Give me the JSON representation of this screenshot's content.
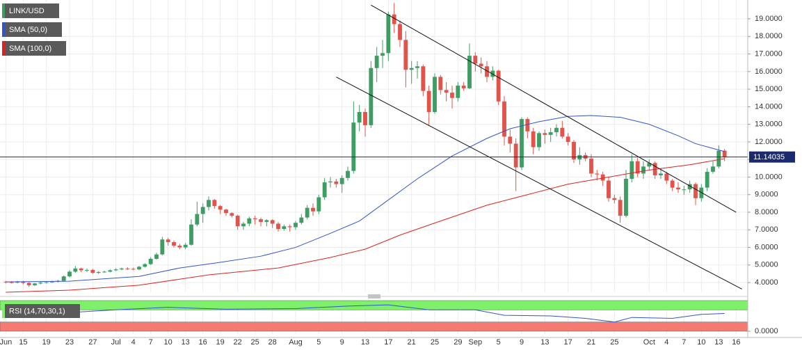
{
  "chart_data": [
    {
      "type": "candlestick",
      "name": "LINK/USD",
      "x": [
        "06-12",
        "06-13",
        "06-14",
        "06-15",
        "06-16",
        "06-17",
        "06-18",
        "06-19",
        "06-20",
        "06-21",
        "06-22",
        "06-23",
        "06-24",
        "06-25",
        "06-26",
        "06-27",
        "06-28",
        "06-29",
        "06-30",
        "07-01",
        "07-02",
        "07-03",
        "07-04",
        "07-05",
        "07-06",
        "07-07",
        "07-08",
        "07-09",
        "07-10",
        "07-11",
        "07-12",
        "07-13",
        "07-14",
        "07-15",
        "07-16",
        "07-17",
        "07-18",
        "07-19",
        "07-20",
        "07-21",
        "07-22",
        "07-23",
        "07-24",
        "07-25",
        "07-26",
        "07-27",
        "07-28",
        "07-29",
        "07-30",
        "07-31",
        "08-01",
        "08-02",
        "08-03",
        "08-04",
        "08-05",
        "08-06",
        "08-07",
        "08-08",
        "08-09",
        "08-10",
        "08-11",
        "08-12",
        "08-13",
        "08-14",
        "08-15",
        "08-16",
        "08-17",
        "08-18",
        "08-19",
        "08-20",
        "08-21",
        "08-22",
        "08-23",
        "08-24",
        "08-25",
        "08-26",
        "08-27",
        "08-28",
        "08-29",
        "08-30",
        "08-31",
        "09-01",
        "09-02",
        "09-03",
        "09-04",
        "09-05",
        "09-06",
        "09-07",
        "09-08",
        "09-09",
        "09-10",
        "09-11",
        "09-12",
        "09-13",
        "09-14",
        "09-15",
        "09-16",
        "09-17",
        "09-18",
        "09-19",
        "09-20",
        "09-21",
        "09-22",
        "09-23",
        "09-24",
        "09-25",
        "09-26",
        "09-27",
        "09-28",
        "09-29",
        "09-30",
        "10-01",
        "10-02",
        "10-03",
        "10-04",
        "10-05",
        "10-06",
        "10-07",
        "10-08",
        "10-09",
        "10-10",
        "10-11",
        "10-12",
        "10-13",
        "10-14"
      ],
      "open": [
        4.05,
        4.02,
        4.0,
        4.05,
        3.98,
        3.85,
        3.95,
        4.0,
        4.02,
        4.05,
        4.1,
        4.35,
        4.62,
        4.8,
        4.7,
        4.72,
        4.55,
        4.6,
        4.62,
        4.7,
        4.75,
        4.8,
        4.78,
        4.75,
        4.9,
        5.05,
        5.35,
        5.6,
        6.45,
        6.3,
        6.1,
        6.0,
        6.15,
        7.3,
        7.9,
        8.3,
        8.7,
        8.35,
        8.15,
        7.95,
        7.8,
        7.2,
        7.35,
        7.65,
        7.6,
        7.45,
        7.55,
        7.35,
        7.05,
        7.2,
        7.15,
        7.4,
        7.7,
        8.25,
        8.05,
        8.85,
        9.7,
        9.75,
        9.6,
        9.95,
        10.35,
        13.1,
        13.7,
        12.95,
        16.2,
        16.9,
        17.05,
        19.25,
        18.7,
        17.8,
        16.1,
        16.2,
        16.3,
        14.9,
        13.7,
        15.7,
        14.95,
        14.8,
        14.5,
        15.2,
        15.05,
        16.9,
        16.45,
        16.3,
        15.7,
        16.05,
        14.3,
        12.3,
        11.9,
        10.55,
        13.3,
        12.6,
        11.7,
        12.5,
        12.4,
        12.55,
        12.8,
        12.3,
        12.0,
        11.0,
        11.25,
        11.05,
        10.2,
        10.15,
        9.8,
        8.8,
        8.7,
        7.8,
        9.9,
        10.9,
        10.2,
        10.6,
        10.8,
        10.1,
        10.2,
        9.8,
        9.4,
        9.3,
        9.3,
        9.6,
        8.8,
        9.4,
        10.3,
        10.6,
        11.5
      ],
      "high": [
        4.1,
        4.08,
        4.1,
        4.1,
        4.02,
        3.98,
        4.05,
        4.08,
        4.1,
        4.15,
        4.4,
        4.7,
        4.95,
        4.85,
        4.8,
        4.78,
        4.65,
        4.68,
        4.75,
        4.82,
        4.85,
        4.88,
        4.85,
        4.95,
        5.1,
        5.45,
        5.7,
        6.6,
        6.55,
        6.4,
        6.2,
        6.25,
        7.6,
        8.6,
        8.5,
        8.9,
        8.75,
        8.4,
        8.2,
        8.0,
        7.85,
        7.45,
        7.75,
        7.8,
        7.7,
        7.6,
        7.6,
        7.45,
        7.3,
        7.3,
        7.5,
        7.9,
        8.4,
        8.5,
        9.0,
        9.95,
        10.0,
        9.9,
        10.1,
        10.6,
        14.3,
        14.1,
        13.9,
        16.6,
        17.4,
        17.8,
        19.4,
        19.9,
        18.9,
        18.3,
        16.6,
        16.6,
        16.4,
        15.2,
        15.9,
        15.8,
        15.4,
        15.2,
        15.4,
        15.4,
        17.6,
        17.1,
        16.8,
        16.6,
        16.3,
        16.1,
        14.6,
        12.7,
        12.2,
        13.4,
        13.4,
        12.8,
        12.6,
        12.7,
        12.8,
        13.0,
        13.2,
        12.5,
        12.1,
        11.7,
        11.4,
        11.3,
        10.4,
        10.3,
        10.0,
        9.0,
        8.9,
        10.4,
        11.3,
        11.1,
        10.9,
        11.0,
        10.9,
        10.5,
        10.3,
        9.9,
        9.7,
        9.5,
        9.8,
        9.7,
        9.6,
        10.5,
        10.9,
        11.8,
        11.6
      ],
      "low": [
        3.95,
        3.95,
        3.95,
        3.9,
        3.75,
        3.8,
        3.9,
        3.95,
        3.98,
        4.0,
        4.05,
        4.3,
        4.55,
        4.6,
        4.6,
        4.5,
        4.5,
        4.55,
        4.58,
        4.65,
        4.7,
        4.72,
        4.7,
        4.7,
        4.85,
        5.0,
        5.3,
        5.55,
        6.1,
        6.0,
        5.9,
        5.9,
        6.1,
        7.2,
        7.4,
        8.1,
        8.2,
        7.9,
        7.8,
        7.7,
        7.0,
        7.0,
        7.2,
        7.3,
        7.2,
        7.2,
        7.1,
        6.9,
        6.95,
        6.9,
        7.0,
        7.3,
        7.6,
        7.8,
        7.9,
        8.7,
        9.4,
        9.4,
        9.1,
        9.8,
        10.2,
        12.6,
        12.3,
        12.8,
        15.4,
        16.2,
        16.6,
        18.2,
        17.4,
        15.1,
        15.3,
        15.6,
        14.6,
        12.9,
        13.6,
        14.7,
        14.3,
        13.9,
        14.3,
        14.9,
        15.0,
        16.0,
        15.9,
        15.4,
        15.5,
        14.1,
        11.8,
        11.4,
        9.2,
        10.4,
        12.2,
        11.3,
        11.5,
        11.9,
        12.0,
        12.3,
        12.2,
        11.8,
        10.8,
        10.7,
        10.9,
        10.0,
        9.8,
        9.5,
        8.6,
        8.5,
        7.4,
        7.7,
        9.7,
        10.0,
        9.9,
        10.4,
        9.9,
        9.9,
        9.6,
        9.2,
        9.1,
        9.0,
        9.1,
        8.4,
        8.6,
        9.2,
        10.2,
        10.5,
        10.9
      ],
      "close": [
        4.02,
        4.0,
        4.05,
        3.98,
        3.85,
        3.95,
        4.0,
        4.02,
        4.05,
        4.1,
        4.35,
        4.62,
        4.8,
        4.7,
        4.72,
        4.55,
        4.6,
        4.62,
        4.7,
        4.75,
        4.8,
        4.78,
        4.75,
        4.9,
        5.05,
        5.35,
        5.6,
        6.45,
        6.3,
        6.1,
        6.0,
        6.15,
        7.3,
        7.9,
        8.3,
        8.7,
        8.35,
        8.15,
        7.95,
        7.8,
        7.2,
        7.35,
        7.65,
        7.6,
        7.45,
        7.55,
        7.35,
        7.05,
        7.2,
        7.15,
        7.4,
        7.7,
        8.25,
        8.05,
        8.85,
        9.7,
        9.75,
        9.6,
        9.95,
        10.35,
        13.1,
        13.7,
        12.95,
        16.2,
        16.9,
        17.05,
        19.25,
        18.7,
        17.8,
        16.1,
        16.2,
        16.3,
        14.9,
        13.7,
        15.7,
        14.95,
        14.8,
        14.5,
        15.2,
        15.05,
        16.9,
        16.45,
        16.3,
        15.7,
        16.05,
        14.3,
        12.3,
        11.9,
        10.55,
        13.3,
        12.6,
        11.7,
        12.5,
        12.4,
        12.55,
        12.8,
        12.3,
        12.0,
        11.0,
        11.25,
        11.05,
        10.2,
        10.15,
        9.8,
        8.8,
        8.7,
        7.8,
        9.9,
        10.9,
        10.2,
        10.6,
        10.8,
        10.1,
        10.2,
        9.8,
        9.4,
        9.3,
        9.3,
        9.6,
        8.8,
        9.4,
        10.3,
        10.6,
        11.5,
        11.14
      ],
      "colors": {
        "up": "#3f9d63",
        "down": "#e0544c"
      },
      "overlays": [
        {
          "name": "SMA (50,0)",
          "color": "#3355cc",
          "x": [
            "06-12",
            "06-23",
            "07-05",
            "07-12",
            "07-19",
            "07-26",
            "08-01",
            "08-07",
            "08-12",
            "08-17",
            "08-22",
            "08-28",
            "09-03",
            "09-07",
            "09-12",
            "09-17",
            "09-21",
            "09-26",
            "10-01",
            "10-06",
            "10-09",
            "10-14"
          ],
          "values": [
            4.04,
            4.08,
            4.35,
            4.83,
            5.15,
            5.5,
            6.0,
            6.8,
            7.5,
            8.7,
            9.9,
            11.2,
            12.2,
            12.75,
            13.15,
            13.45,
            13.5,
            13.4,
            13.0,
            12.35,
            11.9,
            11.45
          ]
        },
        {
          "name": "SMA (100,0)",
          "color": "#dd2222",
          "x": [
            "06-12",
            "06-23",
            "07-05",
            "07-17",
            "07-29",
            "08-07",
            "08-13",
            "08-19",
            "08-26",
            "09-03",
            "09-10",
            "09-17",
            "09-24",
            "10-01",
            "10-08",
            "10-14"
          ],
          "values": [
            3.45,
            3.57,
            3.85,
            4.44,
            4.83,
            5.43,
            5.9,
            6.7,
            7.5,
            8.4,
            9.0,
            9.6,
            10.0,
            10.4,
            10.7,
            11.05
          ]
        }
      ],
      "trendlines": [
        {
          "x": [
            "08-14",
            "10-16"
          ],
          "values": [
            19.78,
            8.0
          ]
        },
        {
          "x": [
            "08-08",
            "10-17"
          ],
          "values": [
            15.69,
            3.63
          ]
        }
      ],
      "last_price": 11.14035,
      "xlim": [
        "06-11",
        "10-18"
      ],
      "xticks": [
        {
          "value": "06-12",
          "label": "Jun"
        },
        {
          "value": "06-15",
          "label": "15"
        },
        {
          "value": "06-19",
          "label": "19"
        },
        {
          "value": "06-23",
          "label": "23"
        },
        {
          "value": "06-27",
          "label": "27"
        },
        {
          "value": "07-01",
          "label": "Jul"
        },
        {
          "value": "07-04",
          "label": "4"
        },
        {
          "value": "07-07",
          "label": "7"
        },
        {
          "value": "07-10",
          "label": "10"
        },
        {
          "value": "07-13",
          "label": "13"
        },
        {
          "value": "07-16",
          "label": "16"
        },
        {
          "value": "07-19",
          "label": "19"
        },
        {
          "value": "07-22",
          "label": "22"
        },
        {
          "value": "07-25",
          "label": "25"
        },
        {
          "value": "07-28",
          "label": "28"
        },
        {
          "value": "08-01",
          "label": "Aug"
        },
        {
          "value": "08-05",
          "label": "5"
        },
        {
          "value": "08-09",
          "label": "9"
        },
        {
          "value": "08-13",
          "label": "13"
        },
        {
          "value": "08-17",
          "label": "17"
        },
        {
          "value": "08-21",
          "label": "21"
        },
        {
          "value": "08-25",
          "label": "25"
        },
        {
          "value": "08-29",
          "label": "29"
        },
        {
          "value": "09-01",
          "label": "Sep"
        },
        {
          "value": "09-05",
          "label": "5"
        },
        {
          "value": "09-09",
          "label": "9"
        },
        {
          "value": "09-13",
          "label": "13"
        },
        {
          "value": "09-17",
          "label": "17"
        },
        {
          "value": "09-21",
          "label": "21"
        },
        {
          "value": "09-25",
          "label": "25"
        },
        {
          "value": "10-01",
          "label": "Oct"
        },
        {
          "value": "10-04",
          "label": "4"
        },
        {
          "value": "10-07",
          "label": "7"
        },
        {
          "value": "10-10",
          "label": "10"
        },
        {
          "value": "10-13",
          "label": "13"
        },
        {
          "value": "10-16",
          "label": "16"
        }
      ],
      "ylim": [
        3.45,
        20.07
      ],
      "yticks": [
        {
          "value": 4,
          "label": "4.0000"
        },
        {
          "value": 5,
          "label": "5.0000"
        },
        {
          "value": 6,
          "label": "6.0000"
        },
        {
          "value": 7,
          "label": "7.0000"
        },
        {
          "value": 8,
          "label": "8.0000"
        },
        {
          "value": 9,
          "label": "9.0000"
        },
        {
          "value": 10,
          "label": "10.0000"
        },
        {
          "value": 11,
          "label": "11.0000"
        },
        {
          "value": 12,
          "label": "12.0000"
        },
        {
          "value": 13,
          "label": "13.0000"
        },
        {
          "value": 14,
          "label": "14.0000"
        },
        {
          "value": 15,
          "label": "15.0000"
        },
        {
          "value": 16,
          "label": "16.0000"
        },
        {
          "value": 17,
          "label": "17.0000"
        },
        {
          "value": 18,
          "label": "18.0000"
        },
        {
          "value": 19,
          "label": "19.0000"
        }
      ],
      "grid": true
    },
    {
      "type": "line",
      "name": "RSI (14,70,30,1)",
      "color": "#3355cc",
      "x": [
        "06-12",
        "06-22",
        "07-01",
        "07-10",
        "07-20",
        "08-01",
        "08-10",
        "08-17",
        "08-24",
        "09-01",
        "09-06",
        "09-14",
        "09-20",
        "09-25",
        "09-28",
        "10-05",
        "10-10",
        "10-14"
      ],
      "values": [
        68,
        60,
        70,
        78,
        72,
        74,
        82,
        86,
        70,
        70,
        52,
        50,
        42,
        30,
        45,
        42,
        55,
        58
      ],
      "bands": [
        {
          "from": 70,
          "to": 100,
          "color": "#7ef06a"
        },
        {
          "from": 0,
          "to": 30,
          "color": "#f47a72"
        }
      ],
      "ylim": [
        0,
        100
      ],
      "yticks": [
        {
          "value": 0,
          "label": "0.0000"
        }
      ]
    }
  ]
}
